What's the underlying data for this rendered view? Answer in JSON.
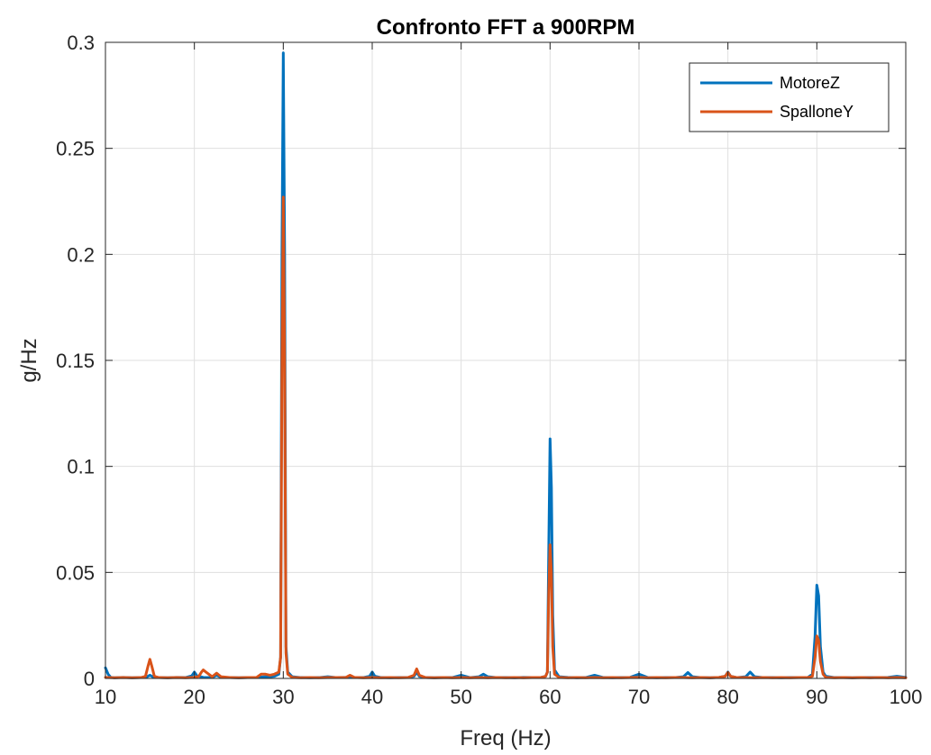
{
  "chart_data": {
    "type": "line",
    "title": "Confronto FFT a 900RPM",
    "xlabel": "Freq (Hz)",
    "ylabel": "g/Hz",
    "xlim": [
      10,
      100
    ],
    "ylim": [
      0,
      0.3
    ],
    "xticks": [
      10,
      20,
      30,
      40,
      50,
      60,
      70,
      80,
      90,
      100
    ],
    "xtick_labels": [
      "10",
      "20",
      "30",
      "40",
      "50",
      "60",
      "70",
      "80",
      "90",
      "100"
    ],
    "yticks": [
      0,
      0.05,
      0.1,
      0.15,
      0.2,
      0.25,
      0.3
    ],
    "ytick_labels": [
      "0",
      "0.05",
      "0.1",
      "0.15",
      "0.2",
      "0.25",
      "0.3"
    ],
    "grid": true,
    "legend_position": "top-right",
    "series": [
      {
        "name": "MotoreZ",
        "color": "#0072BD",
        "x": [
          10,
          10.3,
          10.6,
          11,
          12,
          13,
          14,
          14.7,
          15,
          15.3,
          16,
          17,
          18,
          19,
          19.7,
          20,
          20.3,
          21,
          22,
          22.5,
          23,
          24,
          25,
          26,
          27,
          28,
          28.5,
          29,
          29.5,
          29.7,
          29.85,
          30,
          30.15,
          30.3,
          30.5,
          31,
          32,
          33,
          34,
          35,
          36,
          37,
          38,
          39,
          39.7,
          40,
          40.3,
          41,
          42,
          43,
          44,
          44.7,
          45,
          45.3,
          46,
          47,
          48,
          49,
          50,
          51,
          52,
          52.5,
          53,
          54,
          55,
          56,
          57,
          58,
          59,
          59.5,
          59.7,
          59.85,
          60,
          60.15,
          60.3,
          60.5,
          61,
          62,
          63,
          64,
          65,
          66,
          67,
          68,
          69,
          70,
          71,
          72,
          73,
          74,
          75,
          75.5,
          76,
          77,
          78,
          79,
          79.7,
          80,
          80.3,
          81,
          82,
          82.5,
          83,
          84,
          85,
          86,
          87,
          88,
          89,
          89.5,
          89.8,
          90,
          90.2,
          90.4,
          90.7,
          91,
          92,
          93,
          94,
          95,
          96,
          97,
          98,
          99,
          100
        ],
        "y": [
          0.005,
          0.002,
          0.0005,
          0.0003,
          0.0005,
          0.0003,
          0.0004,
          0.0008,
          0.0015,
          0.0008,
          0.0004,
          0.0003,
          0.0005,
          0.0004,
          0.0012,
          0.003,
          0.0012,
          0.0005,
          0.0004,
          0.0015,
          0.0005,
          0.0004,
          0.0003,
          0.0004,
          0.0005,
          0.0008,
          0.0008,
          0.001,
          0.002,
          0.01,
          0.2,
          0.295,
          0.2,
          0.015,
          0.003,
          0.0008,
          0.0004,
          0.0003,
          0.0004,
          0.0008,
          0.0004,
          0.0005,
          0.0004,
          0.0004,
          0.001,
          0.003,
          0.001,
          0.0004,
          0.0003,
          0.0004,
          0.0004,
          0.001,
          0.003,
          0.001,
          0.0004,
          0.0003,
          0.0004,
          0.0004,
          0.0015,
          0.0004,
          0.0008,
          0.002,
          0.0008,
          0.0004,
          0.0004,
          0.0003,
          0.0005,
          0.0004,
          0.0005,
          0.001,
          0.003,
          0.06,
          0.113,
          0.09,
          0.03,
          0.004,
          0.0008,
          0.0005,
          0.0003,
          0.0004,
          0.0015,
          0.0004,
          0.0003,
          0.0004,
          0.0005,
          0.002,
          0.0004,
          0.0003,
          0.0004,
          0.0004,
          0.0008,
          0.0028,
          0.0008,
          0.0004,
          0.0003,
          0.0005,
          0.001,
          0.003,
          0.001,
          0.0004,
          0.0008,
          0.003,
          0.0008,
          0.0004,
          0.0004,
          0.0003,
          0.0004,
          0.0004,
          0.0005,
          0.002,
          0.02,
          0.044,
          0.039,
          0.015,
          0.003,
          0.001,
          0.0004,
          0.0004,
          0.0003,
          0.0004,
          0.0004,
          0.0004,
          0.0005,
          0.001,
          0.0005
        ]
      },
      {
        "name": "SpalloneY",
        "color": "#D95319",
        "x": [
          10,
          11,
          12,
          13,
          14,
          14.5,
          14.8,
          15,
          15.2,
          15.5,
          16,
          17,
          18,
          19,
          20,
          20.5,
          20.8,
          21,
          21.3,
          22,
          22.5,
          23,
          24,
          25,
          26,
          27,
          27.5,
          28,
          28.5,
          29,
          29.5,
          29.7,
          29.85,
          30,
          30.15,
          30.3,
          30.5,
          31,
          32,
          33,
          34,
          35,
          36,
          37,
          37.5,
          38,
          39,
          40,
          41,
          42,
          43,
          44,
          44.7,
          45,
          45.3,
          46,
          47,
          48,
          49,
          50,
          51,
          52,
          53,
          54,
          55,
          56,
          57,
          58,
          59,
          59.5,
          59.7,
          59.85,
          60,
          60.15,
          60.3,
          60.5,
          61,
          62,
          63,
          64,
          65,
          66,
          67,
          68,
          69,
          70,
          71,
          72,
          73,
          74,
          75,
          76,
          77,
          78,
          79,
          79.7,
          80,
          80.3,
          81,
          82,
          83,
          84,
          85,
          86,
          87,
          88,
          89,
          89.5,
          89.8,
          90,
          90.2,
          90.4,
          90.7,
          91,
          92,
          93,
          94,
          95,
          96,
          97,
          98,
          99,
          100
        ],
        "y": [
          0.0005,
          0.0003,
          0.0004,
          0.0003,
          0.0004,
          0.001,
          0.006,
          0.009,
          0.006,
          0.001,
          0.0004,
          0.0003,
          0.0004,
          0.0003,
          0.0005,
          0.001,
          0.003,
          0.004,
          0.003,
          0.0008,
          0.0025,
          0.0008,
          0.0004,
          0.0003,
          0.0004,
          0.0005,
          0.002,
          0.002,
          0.0015,
          0.002,
          0.003,
          0.01,
          0.15,
          0.227,
          0.15,
          0.012,
          0.002,
          0.0005,
          0.0003,
          0.0004,
          0.0003,
          0.0004,
          0.0004,
          0.0004,
          0.0015,
          0.0005,
          0.0003,
          0.0004,
          0.0003,
          0.0004,
          0.0003,
          0.0004,
          0.0015,
          0.0045,
          0.0015,
          0.0004,
          0.0003,
          0.0004,
          0.0003,
          0.0004,
          0.0003,
          0.0004,
          0.0003,
          0.0004,
          0.0003,
          0.0004,
          0.0003,
          0.0004,
          0.0005,
          0.001,
          0.003,
          0.04,
          0.063,
          0.05,
          0.015,
          0.002,
          0.0005,
          0.0003,
          0.0004,
          0.0003,
          0.0004,
          0.0003,
          0.0004,
          0.0003,
          0.0004,
          0.0005,
          0.0003,
          0.0004,
          0.0003,
          0.0004,
          0.0004,
          0.0003,
          0.0004,
          0.0003,
          0.0005,
          0.001,
          0.0028,
          0.001,
          0.0004,
          0.0004,
          0.0003,
          0.0004,
          0.0003,
          0.0004,
          0.0003,
          0.0004,
          0.0005,
          0.001,
          0.01,
          0.02,
          0.018,
          0.008,
          0.002,
          0.0005,
          0.0003,
          0.0004,
          0.0003,
          0.0004,
          0.0003,
          0.0004,
          0.0003,
          0.0004,
          0.0003
        ]
      }
    ]
  }
}
